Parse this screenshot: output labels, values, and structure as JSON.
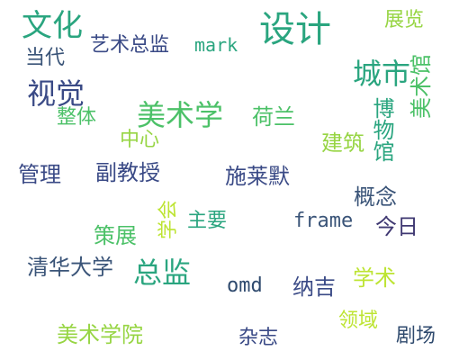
{
  "colors": {
    "background": "#ffffff",
    "teal": "#2aa57f",
    "navy": "#3a4a86",
    "slate": "#3a5478",
    "green": "#4cc168",
    "lime": "#97d544",
    "yellow": "#bde433",
    "purple": "#3f3872",
    "dark": "#2f4a6e"
  },
  "words": [
    {
      "id": "wenhua",
      "text": "文化",
      "color": "#2aa57f"
    },
    {
      "id": "sheji",
      "text": "设计",
      "color": "#2aa57f"
    },
    {
      "id": "zhanlan",
      "text": "展览",
      "color": "#97d544"
    },
    {
      "id": "yishuzongjian",
      "text": "艺术总监",
      "color": "#3a4a86"
    },
    {
      "id": "mark",
      "text": "mark",
      "color": "#2aa57f"
    },
    {
      "id": "dangdai",
      "text": "当代",
      "color": "#3a5478"
    },
    {
      "id": "chengshi",
      "text": "城市",
      "color": "#2aa57f"
    },
    {
      "id": "meishuguan",
      "text": "美术馆",
      "color": "#4cc168"
    },
    {
      "id": "shijue",
      "text": "视觉",
      "color": "#3a4a86"
    },
    {
      "id": "zhengti",
      "text": "整体",
      "color": "#4cc168"
    },
    {
      "id": "meishuxue",
      "text": "美术学",
      "color": "#4cc168"
    },
    {
      "id": "helan",
      "text": "荷兰",
      "color": "#4cc168"
    },
    {
      "id": "bowuguan",
      "text": "博物馆",
      "color": "#2aa57f"
    },
    {
      "id": "zhongxin",
      "text": "中心",
      "color": "#97d544"
    },
    {
      "id": "jianzhu",
      "text": "建筑",
      "color": "#97d544"
    },
    {
      "id": "guanli",
      "text": "管理",
      "color": "#3a4a86"
    },
    {
      "id": "fujiaoshou",
      "text": "副教授",
      "color": "#3a4a86"
    },
    {
      "id": "xuehui",
      "text": "学会",
      "color": "#bde433"
    },
    {
      "id": "shilaimo",
      "text": "施莱默",
      "color": "#3a4a86"
    },
    {
      "id": "gainian",
      "text": "概念",
      "color": "#3a5478"
    },
    {
      "id": "zhuyao",
      "text": "主要",
      "color": "#2aa57f"
    },
    {
      "id": "frame",
      "text": "frame",
      "color": "#3a5478"
    },
    {
      "id": "jinri",
      "text": "今日",
      "color": "#3f3872"
    },
    {
      "id": "cezhan",
      "text": "策展",
      "color": "#4cc168"
    },
    {
      "id": "qinghua",
      "text": "清华大学",
      "color": "#3a5478"
    },
    {
      "id": "zongjian",
      "text": "总监",
      "color": "#2aa57f"
    },
    {
      "id": "omd",
      "text": "omd",
      "color": "#2f4a6e"
    },
    {
      "id": "naji",
      "text": "纳吉",
      "color": "#3a4a86"
    },
    {
      "id": "xueshu",
      "text": "学术",
      "color": "#bde433"
    },
    {
      "id": "lingyu",
      "text": "领域",
      "color": "#bde433"
    },
    {
      "id": "meishuxueyuan",
      "text": "美术学院",
      "color": "#97d544"
    },
    {
      "id": "zazhi",
      "text": "杂志",
      "color": "#3a4a86"
    },
    {
      "id": "juchang",
      "text": "剧场",
      "color": "#2f4a6e"
    }
  ]
}
